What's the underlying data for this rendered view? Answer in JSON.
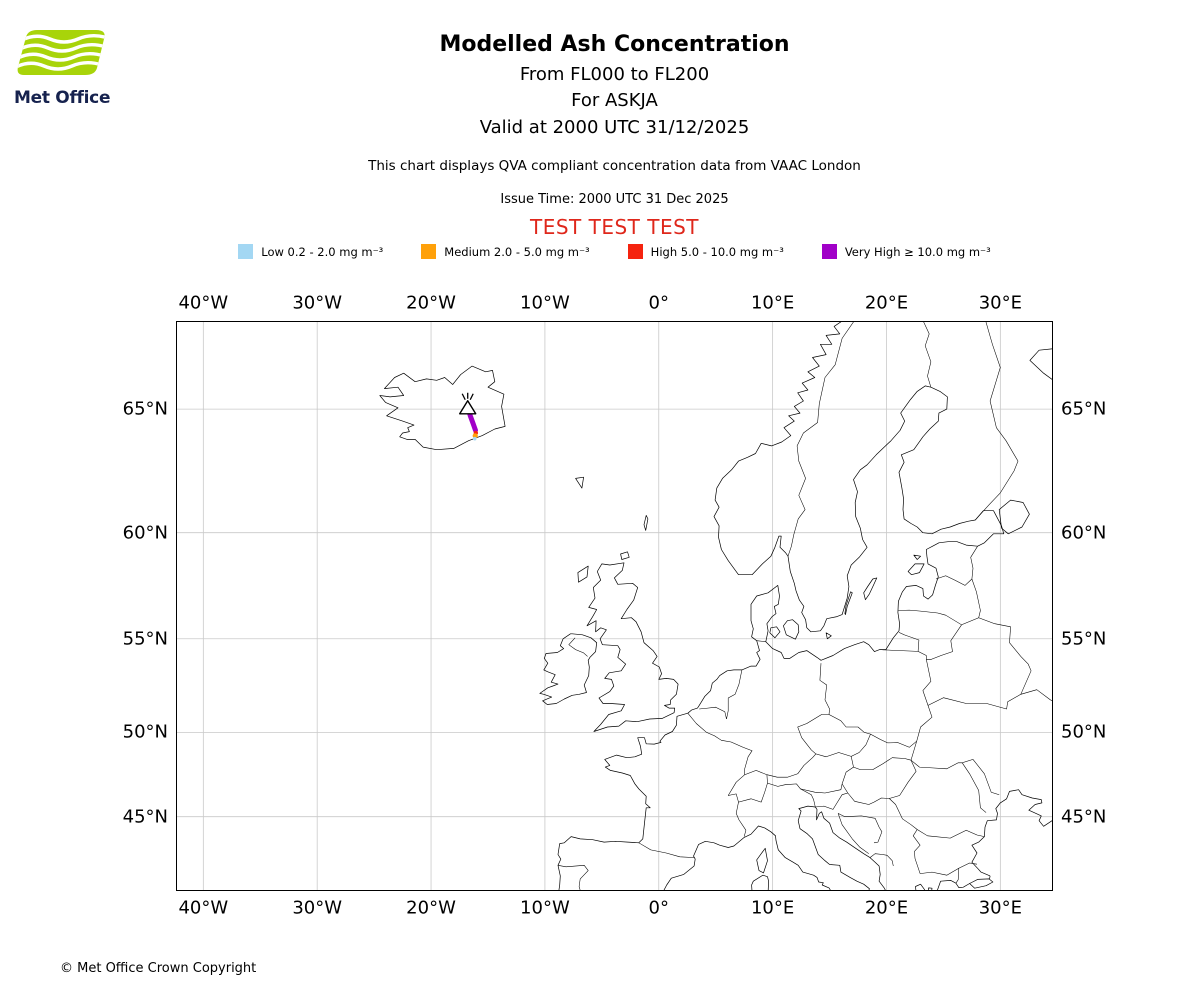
{
  "branding": {
    "logo_text": "Met Office",
    "logo_green": "#a8d40a",
    "logo_navy": "#16224e"
  },
  "header": {
    "title": "Modelled Ash Concentration",
    "flight_levels": "From FL000 to FL200",
    "volcano_line": "For ASKJA",
    "valid_line": "Valid at 2000 UTC 31/12/2025",
    "description": "This chart displays QVA compliant concentration data from VAAC London",
    "issue_time": "Issue Time: 2000 UTC 31 Dec 2025",
    "test_banner": "TEST TEST TEST",
    "test_color": "#df271b"
  },
  "legend": {
    "items": [
      {
        "name": "low",
        "label": "Low 0.2 - 2.0 mg m⁻³",
        "color": "#a3d7f3"
      },
      {
        "name": "medium",
        "label": "Medium 2.0 - 5.0 mg m⁻³",
        "color": "#ffa10a"
      },
      {
        "name": "high",
        "label": "High 5.0 - 10.0 mg m⁻³",
        "color": "#f5230f"
      },
      {
        "name": "very_high",
        "label": "Very High ≥ 10.0 mg m⁻³",
        "color": "#a100c8"
      }
    ]
  },
  "map": {
    "lon_ticks": [
      {
        "deg": -40,
        "label": "40°W"
      },
      {
        "deg": -30,
        "label": "30°W"
      },
      {
        "deg": -20,
        "label": "20°W"
      },
      {
        "deg": -10,
        "label": "10°W"
      },
      {
        "deg": 0,
        "label": "0°"
      },
      {
        "deg": 10,
        "label": "10°E"
      },
      {
        "deg": 20,
        "label": "20°E"
      },
      {
        "deg": 30,
        "label": "30°E"
      }
    ],
    "lat_ticks": [
      {
        "deg": 65,
        "label": "65°N"
      },
      {
        "deg": 60,
        "label": "60°N"
      },
      {
        "deg": 55,
        "label": "55°N"
      },
      {
        "deg": 50,
        "label": "50°N"
      },
      {
        "deg": 45,
        "label": "45°N"
      }
    ],
    "volcano": {
      "lon": -16.78,
      "lat": 65.05
    },
    "plume": {
      "track": [
        [
          -16.72,
          65.0
        ],
        [
          -16.55,
          64.75
        ],
        [
          -16.3,
          64.45
        ],
        [
          -16.1,
          64.2
        ]
      ],
      "track_color": "#a100c8",
      "track_width": 5,
      "marks": [
        {
          "lon": -16.07,
          "lat": 64.1,
          "color": "#f5230f",
          "r": 2.2
        },
        {
          "lon": -16.12,
          "lat": 63.99,
          "color": "#ffa10a",
          "r": 2.6
        },
        {
          "lon": -16.16,
          "lat": 63.88,
          "color": "#a3d7f3",
          "r": 1.8
        }
      ]
    }
  },
  "footer": {
    "copyright": "© Met Office Crown Copyright"
  }
}
